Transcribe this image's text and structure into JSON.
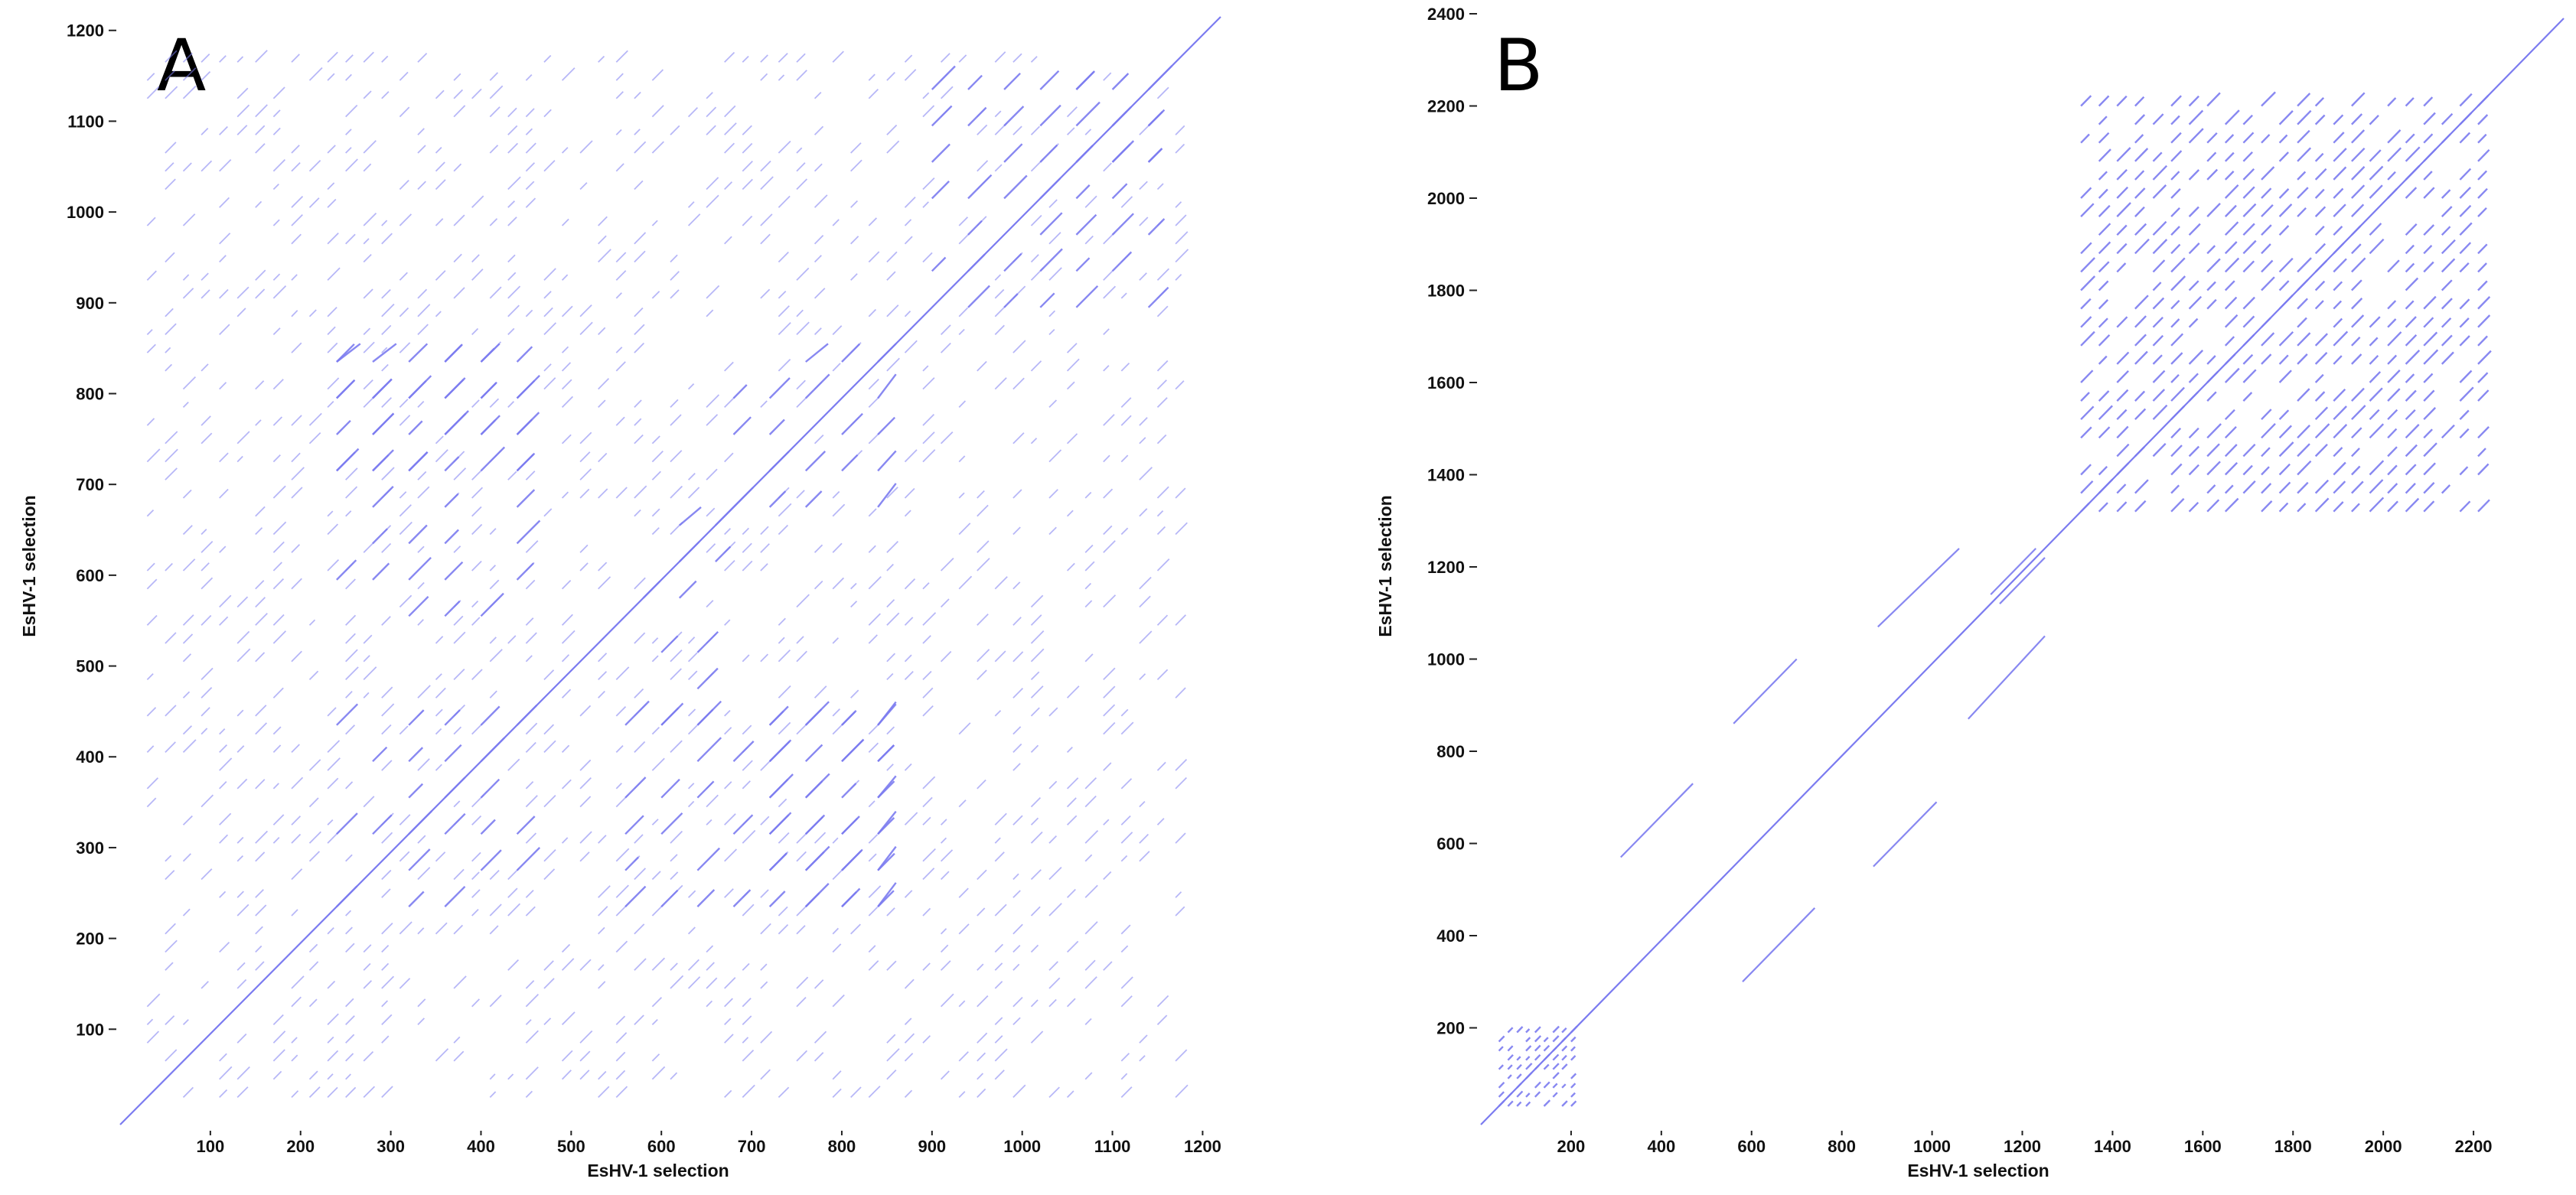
{
  "figure": {
    "panels": [
      "A",
      "B"
    ]
  },
  "chart_data": [
    {
      "panel": "A",
      "type": "scatter",
      "subtype": "dot-plot self-similarity matrix",
      "xlabel": "EsHV-1 selection",
      "ylabel": "EsHV-1 selection",
      "xlim": [
        0,
        1220
      ],
      "ylim": [
        0,
        1220
      ],
      "xticks": [
        100,
        200,
        300,
        400,
        500,
        600,
        700,
        800,
        900,
        1000,
        1100,
        1200
      ],
      "yticks": [
        100,
        200,
        300,
        400,
        500,
        600,
        700,
        800,
        900,
        1000,
        1100,
        1200
      ],
      "color": "#7b7bf0",
      "main_diagonal": [
        [
          0,
          0
        ],
        [
          1220,
          1220
        ]
      ],
      "repeat_period": 40,
      "repeat_segment_length": 24,
      "repeat_blocks": [
        {
          "x": [
            240,
            480
          ],
          "y": [
            720,
            860
          ]
        },
        {
          "x": [
            720,
            860
          ],
          "y": [
            240,
            480
          ]
        },
        {
          "x": [
            240,
            480
          ],
          "y": [
            560,
            680
          ]
        },
        {
          "x": [
            560,
            680
          ],
          "y": [
            240,
            480
          ]
        },
        {
          "x": [
            240,
            480
          ],
          "y": [
            240,
            480
          ]
        },
        {
          "x": [
            580,
            680
          ],
          "y": [
            580,
            680
          ]
        },
        {
          "x": [
            680,
            860
          ],
          "y": [
            680,
            860
          ]
        },
        {
          "x": [
            680,
            860
          ],
          "y": [
            240,
            480
          ]
        },
        {
          "x": [
            240,
            480
          ],
          "y": [
            680,
            860
          ]
        },
        {
          "x": [
            600,
            680
          ],
          "y": [
            440,
            560
          ]
        },
        {
          "x": [
            900,
            1060
          ],
          "y": [
            900,
            1060
          ]
        },
        {
          "x": [
            900,
            1180
          ],
          "y": [
            1060,
            1180
          ]
        },
        {
          "x": [
            1060,
            1180
          ],
          "y": [
            900,
            1180
          ]
        }
      ],
      "background_pattern": {
        "x": [
          30,
          1190
        ],
        "y": [
          30,
          1190
        ],
        "period": 40,
        "segment_length": 14
      }
    },
    {
      "panel": "B",
      "type": "scatter",
      "subtype": "dot-plot self-similarity matrix",
      "xlabel": "EsHV-1 selection",
      "ylabel": "EsHV-1 selection",
      "xlim": [
        0,
        2400
      ],
      "ylim": [
        0,
        2400
      ],
      "xticks": [
        200,
        400,
        600,
        800,
        1000,
        1200,
        1400,
        1600,
        1800,
        2000,
        2200
      ],
      "yticks": [
        200,
        400,
        600,
        800,
        1000,
        1200,
        1400,
        1600,
        1800,
        2000,
        2200,
        2400
      ],
      "color": "#7b7bf0",
      "main_diagonal": [
        [
          0,
          0
        ],
        [
          2400,
          2400
        ]
      ],
      "repeat_blocks": [
        {
          "x": [
            1330,
            2240
          ],
          "y": [
            1330,
            2240
          ],
          "period": 40,
          "segment_length": 28
        },
        {
          "x": [
            40,
            220
          ],
          "y": [
            40,
            220
          ],
          "period": 20,
          "segment_length": 12
        }
      ],
      "off_diagonal_segments": [
        [
          [
            310,
            580
          ],
          [
            470,
            740
          ]
        ],
        [
          [
            580,
            310
          ],
          [
            740,
            470
          ]
        ],
        [
          [
            560,
            870
          ],
          [
            700,
            1010
          ]
        ],
        [
          [
            870,
            560
          ],
          [
            1010,
            700
          ]
        ],
        [
          [
            880,
            1080
          ],
          [
            1060,
            1250
          ]
        ],
        [
          [
            1080,
            880
          ],
          [
            1250,
            1060
          ]
        ],
        [
          [
            1130,
            1150
          ],
          [
            1230,
            1250
          ]
        ],
        [
          [
            1150,
            1130
          ],
          [
            1250,
            1230
          ]
        ]
      ]
    }
  ]
}
